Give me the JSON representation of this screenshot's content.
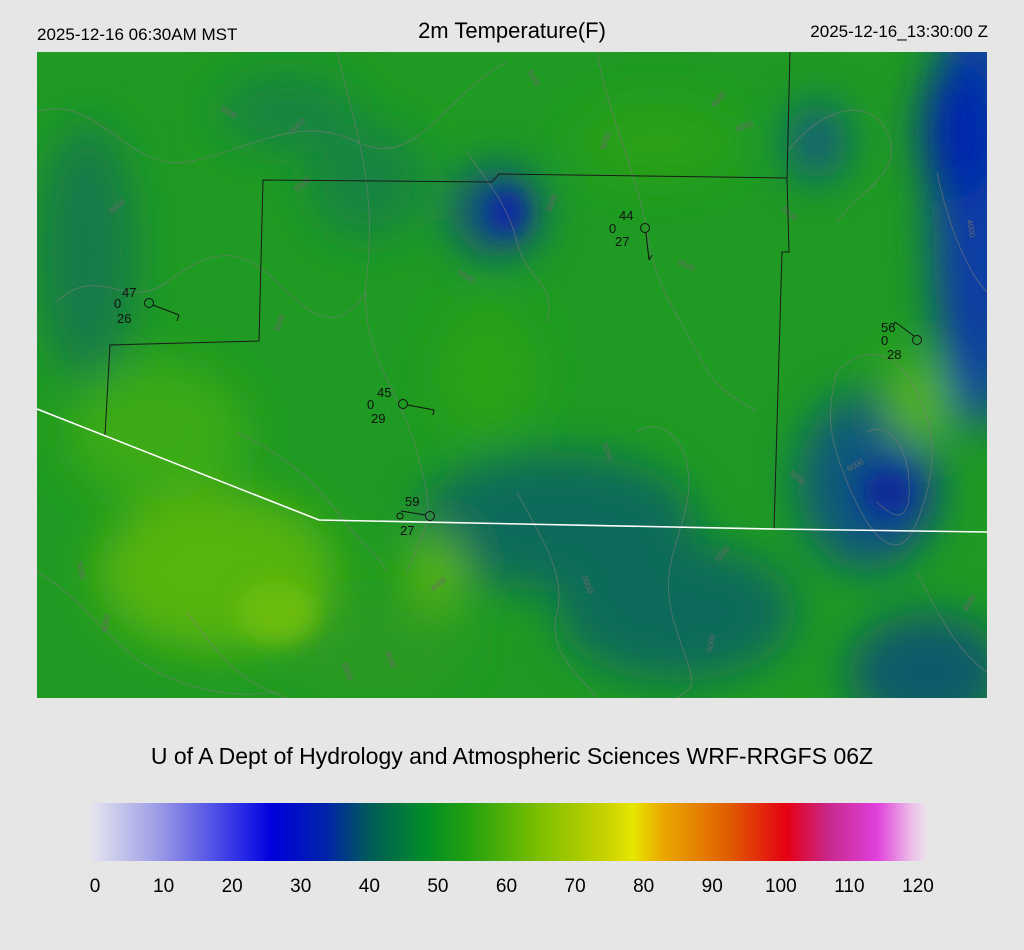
{
  "header": {
    "local_time": "2025-12-16 06:30AM MST",
    "title": "2m Temperature(F)",
    "utc_time": "2025-12-16_13:30:00 Z"
  },
  "credit": "U of A Dept of Hydrology and Atmospheric Sciences WRF-RRGFS 06Z",
  "colorbar": {
    "min": 0,
    "max": 120,
    "ticks": [
      "0",
      "10",
      "20",
      "30",
      "40",
      "50",
      "60",
      "70",
      "80",
      "90",
      "100",
      "110",
      "120"
    ],
    "stops": [
      {
        "value": 0,
        "color": "#e6e6ef"
      },
      {
        "value": 10,
        "color": "#9a9ae6"
      },
      {
        "value": 22,
        "color": "#2828e6"
      },
      {
        "value": 26,
        "color": "#0000dc"
      },
      {
        "value": 34,
        "color": "#0024a8"
      },
      {
        "value": 40,
        "color": "#005a5a"
      },
      {
        "value": 48,
        "color": "#008c28"
      },
      {
        "value": 54,
        "color": "#20a010"
      },
      {
        "value": 64,
        "color": "#78be00"
      },
      {
        "value": 74,
        "color": "#c8d200"
      },
      {
        "value": 78,
        "color": "#e6e600"
      },
      {
        "value": 82,
        "color": "#eaaa00"
      },
      {
        "value": 92,
        "color": "#e05a00"
      },
      {
        "value": 100,
        "color": "#e60014"
      },
      {
        "value": 106,
        "color": "#c8288c"
      },
      {
        "value": 113,
        "color": "#e040dc"
      },
      {
        "value": 118,
        "color": "#ecc0e8"
      },
      {
        "value": 120,
        "color": "#eae0ea"
      }
    ]
  },
  "contour_labels": [
    "4000",
    "4500",
    "5000",
    "5500",
    "6000"
  ],
  "stations": [
    {
      "temp": "47",
      "cloud": "0",
      "dew": "26"
    },
    {
      "temp": "44",
      "cloud": "0",
      "dew": "27"
    },
    {
      "temp": "45",
      "cloud": "0",
      "dew": "29"
    },
    {
      "temp": "59",
      "cloud": "0",
      "dew": "27"
    },
    {
      "temp": "56",
      "cloud": "0",
      "dew": "28"
    }
  ],
  "colors": {
    "background": "#e6e6e6",
    "border_line": "#ffffff",
    "county_line": "#1a1a1a",
    "contour_line": "#7a7a7a"
  }
}
